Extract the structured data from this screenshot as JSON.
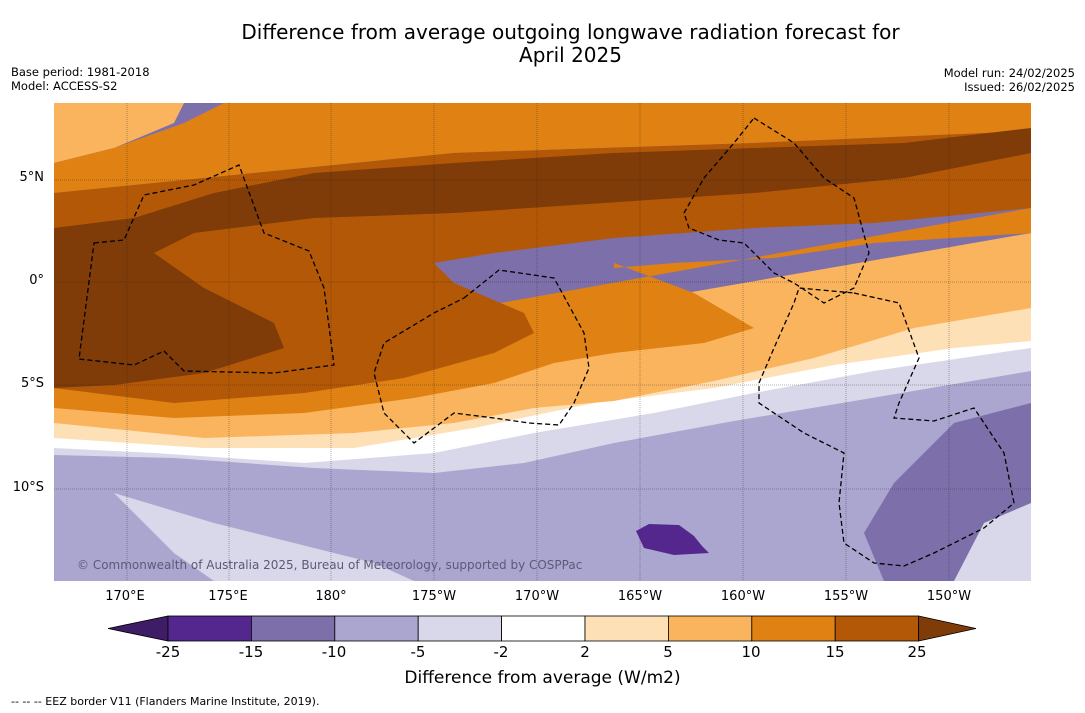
{
  "title_line1": "Difference from average outgoing longwave radiation forecast for",
  "title_line2": "April 2025",
  "base_period": "Base period: 1981-2018",
  "model": "Model: ACCESS-S2",
  "model_run": "Model run: 24/02/2025",
  "issued": "Issued: 26/02/2025",
  "lat_labels": [
    "5°N",
    "0°",
    "5°S",
    "10°S"
  ],
  "lon_labels": [
    "170°E",
    "175°E",
    "180°",
    "175°W",
    "170°W",
    "165°W",
    "160°W",
    "155°W",
    "150°W"
  ],
  "credit": "© Commonwealth of Australia 2025, Bureau of Meteorology, supported by COSPPac",
  "colorbar": {
    "ticks": [
      "-25",
      "-15",
      "-10",
      "-5",
      "-2",
      "2",
      "5",
      "10",
      "15",
      "25"
    ],
    "colors": [
      "#3f1c66",
      "#54278f",
      "#7d6faa",
      "#aba6cf",
      "#d8d8ea",
      "#ffffff",
      "#fee0b6",
      "#fbb45e",
      "#e08114",
      "#b35806",
      "#7f3b08"
    ],
    "title": "Difference from average (W/m2)"
  },
  "footer": "--  --  -- EEZ border V11 (Flanders Marine Institute, 2019)."
}
